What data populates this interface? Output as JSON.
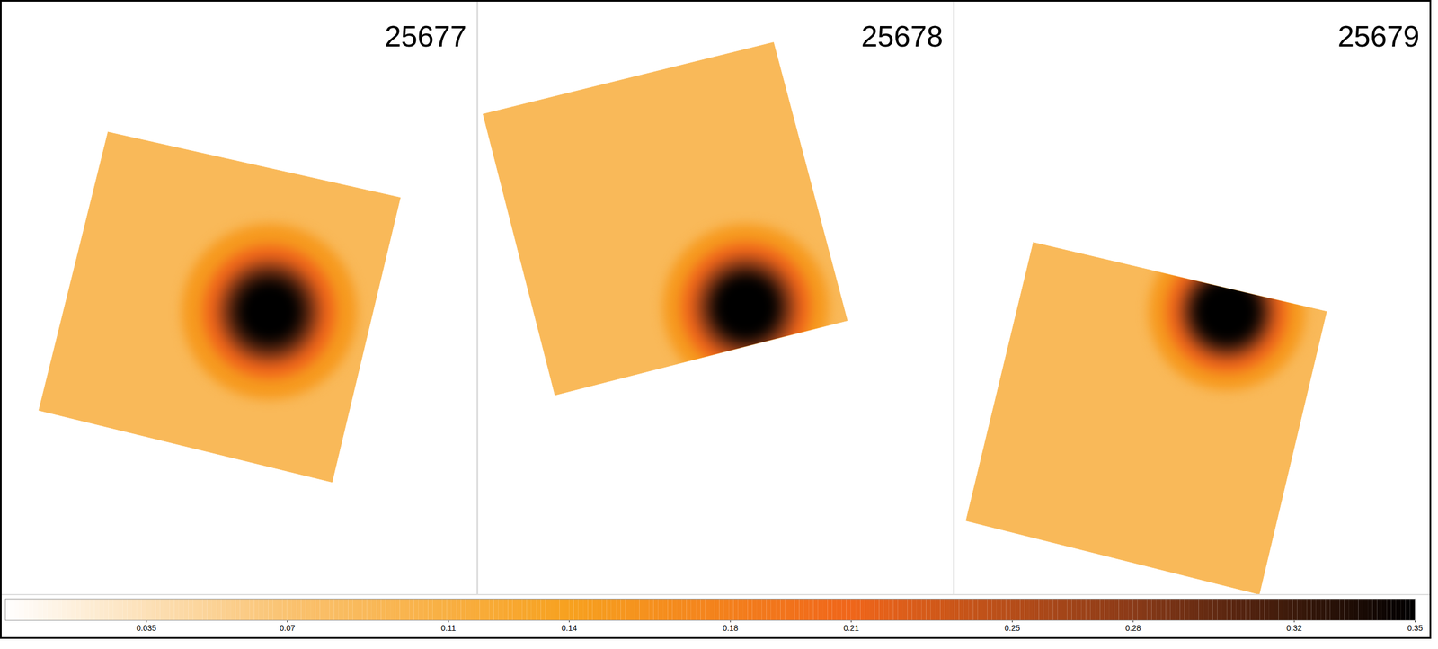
{
  "chart_data": {
    "type": "image_panels",
    "tick_labels": "x",
    "xlim": [
      0,
      515
    ],
    "ylim": [
      0,
      660
    ],
    "background_level": 0.09,
    "panels": [
      {
        "label": "25677",
        "field": [
          [
            115,
            145
          ],
          [
            432,
            218
          ],
          [
            358,
            535
          ],
          [
            40,
            455
          ]
        ],
        "source": {
          "center": [
            290,
            345
          ],
          "profile": [
            {
              "r": 95,
              "v": 0.15
            },
            {
              "r": 72,
              "v": 0.21
            },
            {
              "r": 56,
              "v": 0.27
            },
            {
              "r": 44,
              "v": 0.32
            },
            {
              "r": 32,
              "v": 0.35
            }
          ]
        }
      },
      {
        "label": "25678",
        "field": [
          [
            5,
            125
          ],
          [
            320,
            45
          ],
          [
            400,
            355
          ],
          [
            83,
            438
          ]
        ],
        "source": {
          "center": [
            290,
            340
          ],
          "profile": [
            {
              "r": 90,
              "v": 0.15
            },
            {
              "r": 70,
              "v": 0.21
            },
            {
              "r": 55,
              "v": 0.27
            },
            {
              "r": 43,
              "v": 0.32
            },
            {
              "r": 33,
              "v": 0.35
            }
          ]
        }
      },
      {
        "label": "25679",
        "field": [
          [
            85,
            268
          ],
          [
            403,
            345
          ],
          [
            330,
            660
          ],
          [
            12,
            578
          ]
        ],
        "source": {
          "center": [
            295,
            345
          ],
          "profile": [
            {
              "r": 85,
              "v": 0.15
            },
            {
              "r": 66,
              "v": 0.21
            },
            {
              "r": 52,
              "v": 0.27
            },
            {
              "r": 42,
              "v": 0.32
            },
            {
              "r": 33,
              "v": 0.35
            }
          ]
        }
      }
    ],
    "colorbar": {
      "range": [
        0,
        0.35
      ],
      "ticks": [
        0.035,
        0.07,
        0.11,
        0.14,
        0.18,
        0.21,
        0.25,
        0.28,
        0.32,
        0.35
      ],
      "stops": [
        0,
        0.07,
        0.14,
        0.21,
        0.28,
        0.35
      ],
      "colors": [
        "#ffffff",
        "#fac270",
        "#f7a11f",
        "#f0661a",
        "#8a3a18",
        "#000000"
      ]
    }
  }
}
